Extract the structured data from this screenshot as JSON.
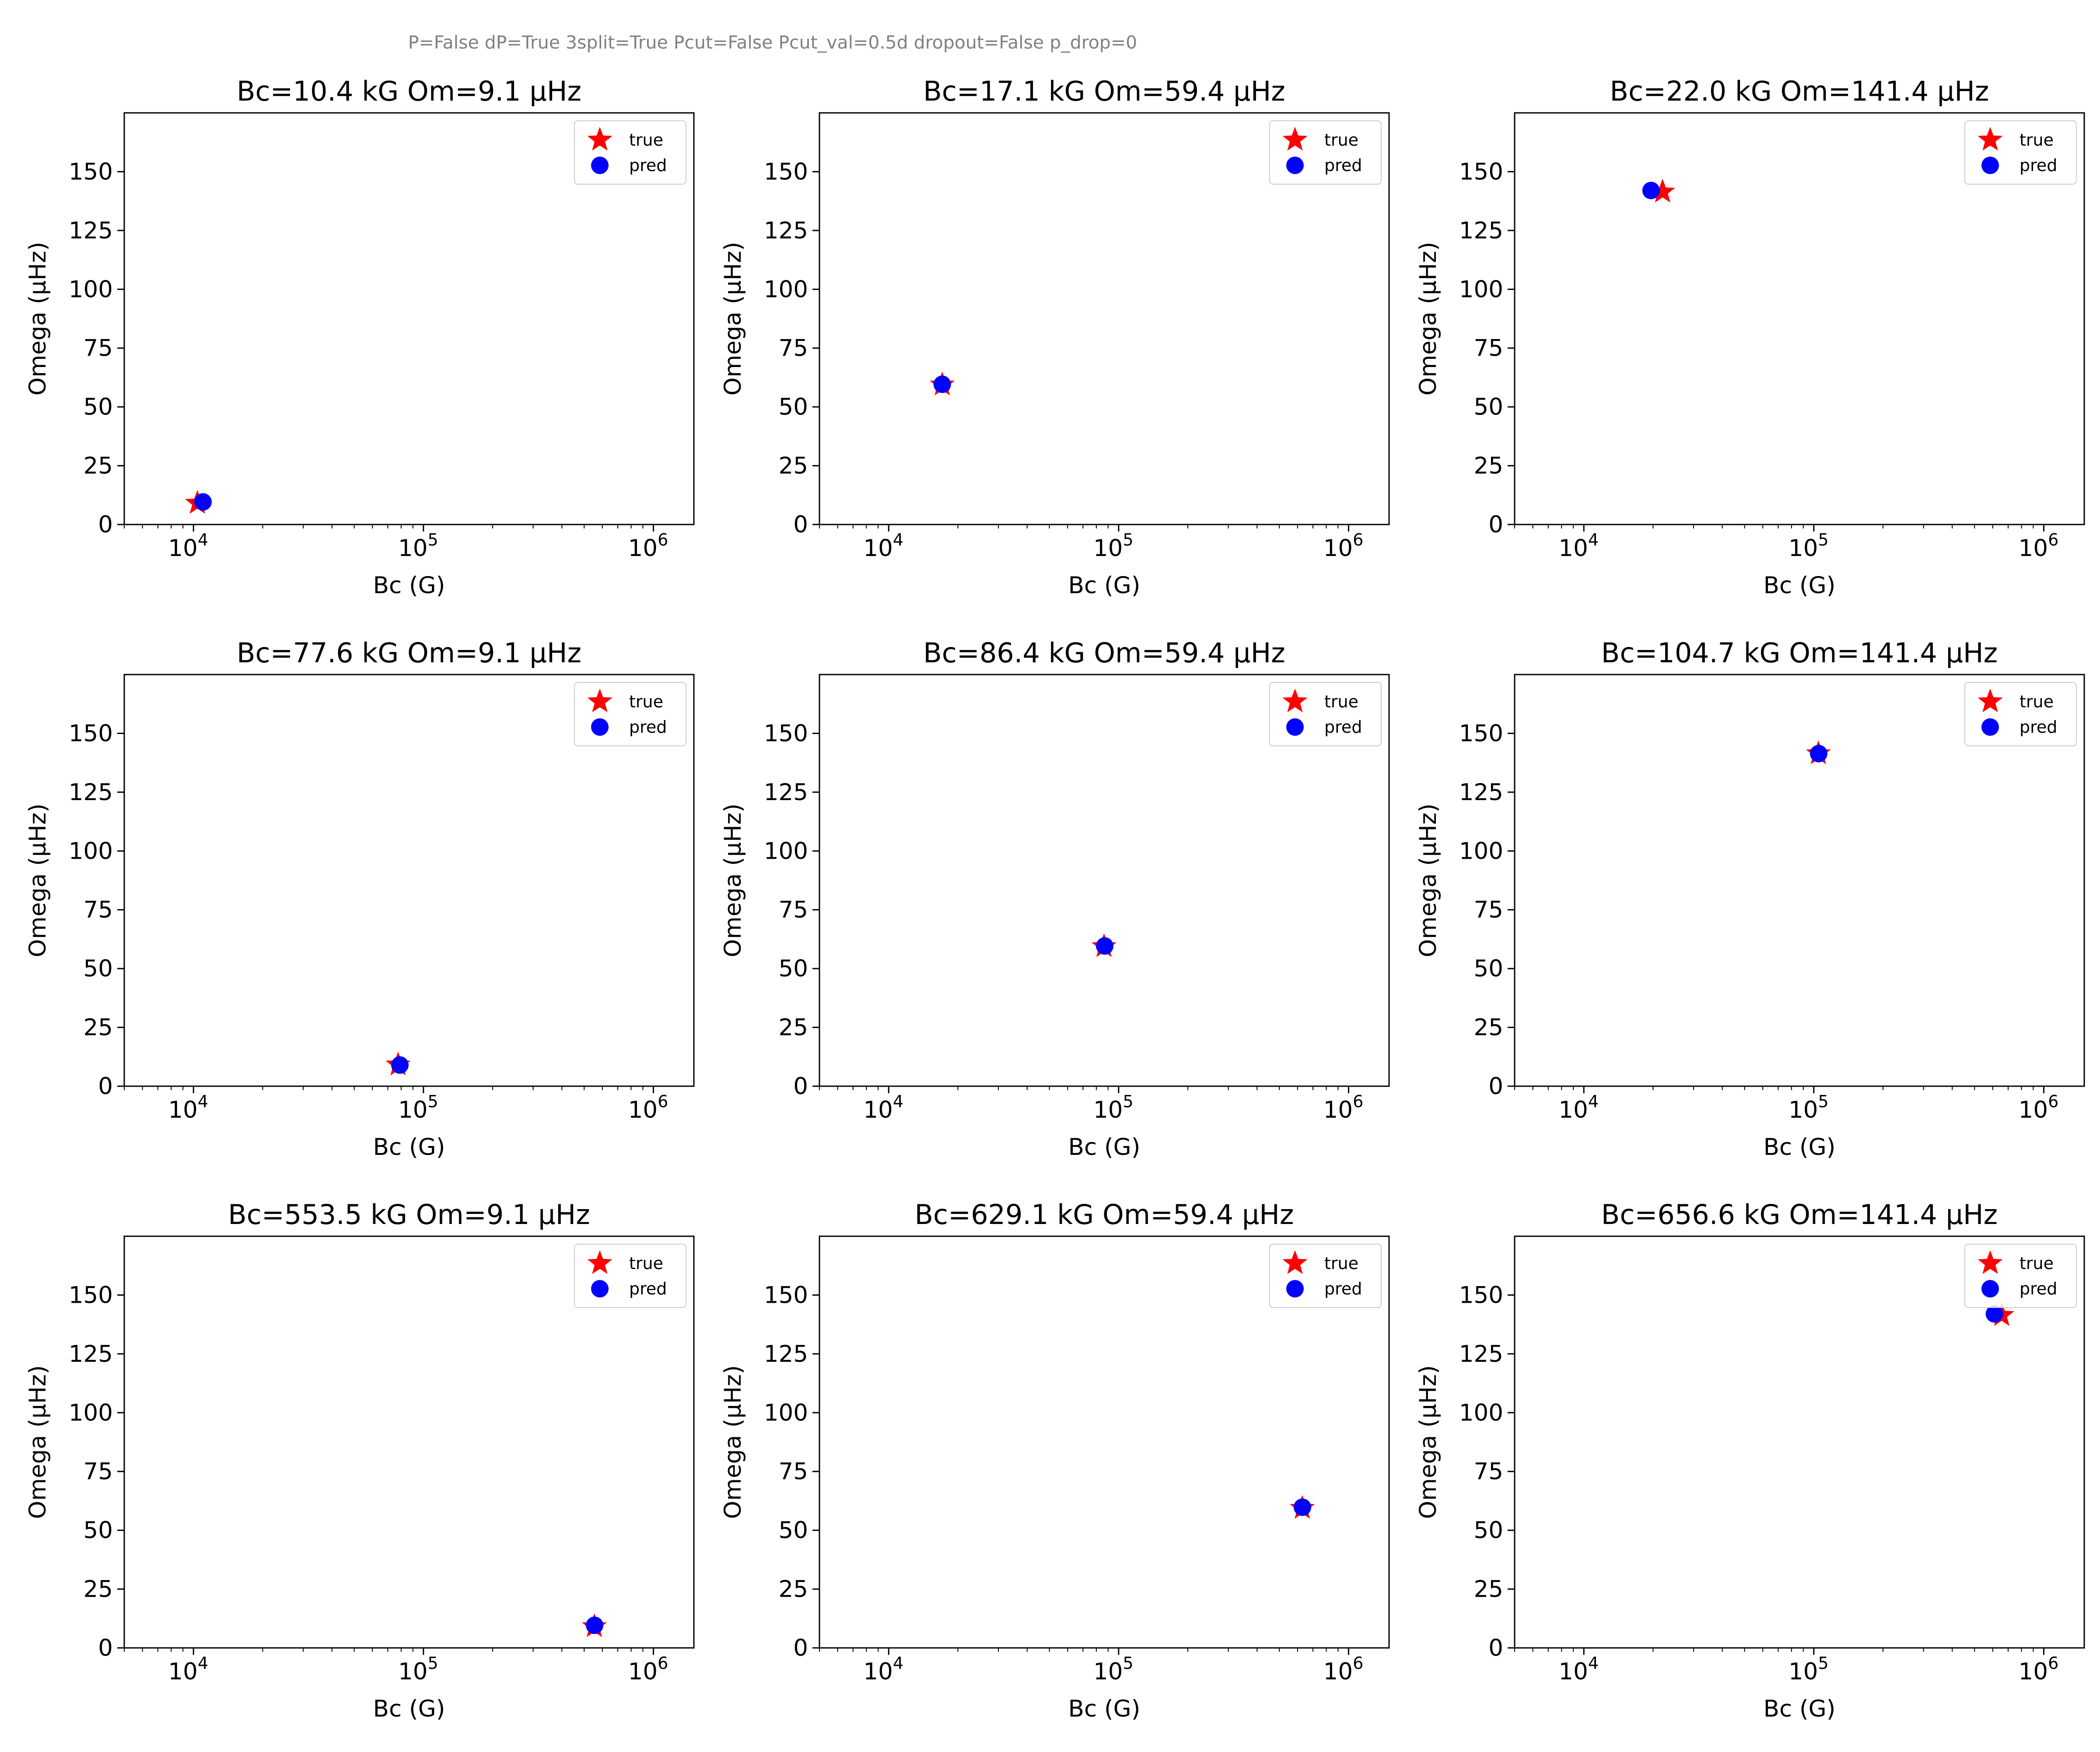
{
  "figure": {
    "suptitle": "P=False dP=True 3split=True Pcut=False Pcut_val=0.5d dropout=False p_drop=0"
  },
  "chart_data": [
    {
      "type": "scatter",
      "title": "Bc=10.4 kG  Om=9.1 μHz",
      "xlabel": "Bc (G)",
      "ylabel": "Omega (μHz)",
      "xscale": "log",
      "xlim": [
        5000,
        1500000
      ],
      "ylim": [
        0,
        175
      ],
      "xticks": [
        "10",
        "10",
        "10"
      ],
      "xticks_exp": [
        "4",
        "5",
        "6"
      ],
      "yticks": [
        "0",
        "25",
        "50",
        "75",
        "100",
        "125",
        "150"
      ],
      "legend": {
        "position": "top-right",
        "entries": [
          "true",
          "pred"
        ]
      },
      "series": [
        {
          "name": "true",
          "marker": "star",
          "color": "#ff0000",
          "x": [
            10400
          ],
          "y": [
            9.1
          ]
        },
        {
          "name": "pred",
          "marker": "circle",
          "color": "#0000ff",
          "x": [
            11000
          ],
          "y": [
            9.6
          ]
        }
      ]
    },
    {
      "type": "scatter",
      "title": "Bc=17.1 kG  Om=59.4 μHz",
      "xlabel": "Bc (G)",
      "ylabel": "Omega (μHz)",
      "xscale": "log",
      "xlim": [
        5000,
        1500000
      ],
      "ylim": [
        0,
        175
      ],
      "xticks": [
        "10",
        "10",
        "10"
      ],
      "xticks_exp": [
        "4",
        "5",
        "6"
      ],
      "yticks": [
        "0",
        "25",
        "50",
        "75",
        "100",
        "125",
        "150"
      ],
      "legend": {
        "position": "top-right",
        "entries": [
          "true",
          "pred"
        ]
      },
      "series": [
        {
          "name": "true",
          "marker": "star",
          "color": "#ff0000",
          "x": [
            17100
          ],
          "y": [
            59.4
          ]
        },
        {
          "name": "pred",
          "marker": "circle",
          "color": "#0000ff",
          "x": [
            17100
          ],
          "y": [
            59.6
          ]
        }
      ]
    },
    {
      "type": "scatter",
      "title": "Bc=22.0 kG  Om=141.4 μHz",
      "xlabel": "Bc (G)",
      "ylabel": "Omega (μHz)",
      "xscale": "log",
      "xlim": [
        5000,
        1500000
      ],
      "ylim": [
        0,
        175
      ],
      "xticks": [
        "10",
        "10",
        "10"
      ],
      "xticks_exp": [
        "4",
        "5",
        "6"
      ],
      "yticks": [
        "0",
        "25",
        "50",
        "75",
        "100",
        "125",
        "150"
      ],
      "legend": {
        "position": "top-right",
        "entries": [
          "true",
          "pred"
        ]
      },
      "series": [
        {
          "name": "true",
          "marker": "star",
          "color": "#ff0000",
          "x": [
            22000
          ],
          "y": [
            141.4
          ]
        },
        {
          "name": "pred",
          "marker": "circle",
          "color": "#0000ff",
          "x": [
            19600
          ],
          "y": [
            142.0
          ]
        }
      ]
    },
    {
      "type": "scatter",
      "title": "Bc=77.6 kG  Om=9.1 μHz",
      "xlabel": "Bc (G)",
      "ylabel": "Omega (μHz)",
      "xscale": "log",
      "xlim": [
        5000,
        1500000
      ],
      "ylim": [
        0,
        175
      ],
      "xticks": [
        "10",
        "10",
        "10"
      ],
      "xticks_exp": [
        "4",
        "5",
        "6"
      ],
      "yticks": [
        "0",
        "25",
        "50",
        "75",
        "100",
        "125",
        "150"
      ],
      "legend": {
        "position": "top-right",
        "entries": [
          "true",
          "pred"
        ]
      },
      "series": [
        {
          "name": "true",
          "marker": "star",
          "color": "#ff0000",
          "x": [
            77600
          ],
          "y": [
            9.1
          ]
        },
        {
          "name": "pred",
          "marker": "circle",
          "color": "#0000ff",
          "x": [
            79000
          ],
          "y": [
            9.0
          ]
        }
      ]
    },
    {
      "type": "scatter",
      "title": "Bc=86.4 kG  Om=59.4 μHz",
      "xlabel": "Bc (G)",
      "ylabel": "Omega (μHz)",
      "xscale": "log",
      "xlim": [
        5000,
        1500000
      ],
      "ylim": [
        0,
        175
      ],
      "xticks": [
        "10",
        "10",
        "10"
      ],
      "xticks_exp": [
        "4",
        "5",
        "6"
      ],
      "yticks": [
        "0",
        "25",
        "50",
        "75",
        "100",
        "125",
        "150"
      ],
      "legend": {
        "position": "top-right",
        "entries": [
          "true",
          "pred"
        ]
      },
      "series": [
        {
          "name": "true",
          "marker": "star",
          "color": "#ff0000",
          "x": [
            86400
          ],
          "y": [
            59.4
          ]
        },
        {
          "name": "pred",
          "marker": "circle",
          "color": "#0000ff",
          "x": [
            87000
          ],
          "y": [
            59.6
          ]
        }
      ]
    },
    {
      "type": "scatter",
      "title": "Bc=104.7 kG  Om=141.4 μHz",
      "xlabel": "Bc (G)",
      "ylabel": "Omega (μHz)",
      "xscale": "log",
      "xlim": [
        5000,
        1500000
      ],
      "ylim": [
        0,
        175
      ],
      "xticks": [
        "10",
        "10",
        "10"
      ],
      "xticks_exp": [
        "4",
        "5",
        "6"
      ],
      "yticks": [
        "0",
        "25",
        "50",
        "75",
        "100",
        "125",
        "150"
      ],
      "legend": {
        "position": "top-right",
        "entries": [
          "true",
          "pred"
        ]
      },
      "series": [
        {
          "name": "true",
          "marker": "star",
          "color": "#ff0000",
          "x": [
            104700
          ],
          "y": [
            141.4
          ]
        },
        {
          "name": "pred",
          "marker": "circle",
          "color": "#0000ff",
          "x": [
            105000
          ],
          "y": [
            141.4
          ]
        }
      ]
    },
    {
      "type": "scatter",
      "title": "Bc=553.5 kG  Om=9.1 μHz",
      "xlabel": "Bc (G)",
      "ylabel": "Omega (μHz)",
      "xscale": "log",
      "xlim": [
        5000,
        1500000
      ],
      "ylim": [
        0,
        175
      ],
      "xticks": [
        "10",
        "10",
        "10"
      ],
      "xticks_exp": [
        "4",
        "5",
        "6"
      ],
      "yticks": [
        "0",
        "25",
        "50",
        "75",
        "100",
        "125",
        "150"
      ],
      "legend": {
        "position": "top-right",
        "entries": [
          "true",
          "pred"
        ]
      },
      "series": [
        {
          "name": "true",
          "marker": "star",
          "color": "#ff0000",
          "x": [
            553500
          ],
          "y": [
            9.1
          ]
        },
        {
          "name": "pred",
          "marker": "circle",
          "color": "#0000ff",
          "x": [
            555000
          ],
          "y": [
            9.6
          ]
        }
      ]
    },
    {
      "type": "scatter",
      "title": "Bc=629.1 kG  Om=59.4 μHz",
      "xlabel": "Bc (G)",
      "ylabel": "Omega (μHz)",
      "xscale": "log",
      "xlim": [
        5000,
        1500000
      ],
      "ylim": [
        0,
        175
      ],
      "xticks": [
        "10",
        "10",
        "10"
      ],
      "xticks_exp": [
        "4",
        "5",
        "6"
      ],
      "yticks": [
        "0",
        "25",
        "50",
        "75",
        "100",
        "125",
        "150"
      ],
      "legend": {
        "position": "top-right",
        "entries": [
          "true",
          "pred"
        ]
      },
      "series": [
        {
          "name": "true",
          "marker": "star",
          "color": "#ff0000",
          "x": [
            629100
          ],
          "y": [
            59.4
          ]
        },
        {
          "name": "pred",
          "marker": "circle",
          "color": "#0000ff",
          "x": [
            630000
          ],
          "y": [
            59.8
          ]
        }
      ]
    },
    {
      "type": "scatter",
      "title": "Bc=656.6 kG  Om=141.4 μHz",
      "xlabel": "Bc (G)",
      "ylabel": "Omega (μHz)",
      "xscale": "log",
      "xlim": [
        5000,
        1500000
      ],
      "ylim": [
        0,
        175
      ],
      "xticks": [
        "10",
        "10",
        "10"
      ],
      "xticks_exp": [
        "4",
        "5",
        "6"
      ],
      "yticks": [
        "0",
        "25",
        "50",
        "75",
        "100",
        "125",
        "150"
      ],
      "legend": {
        "position": "top-right",
        "entries": [
          "true",
          "pred"
        ]
      },
      "series": [
        {
          "name": "true",
          "marker": "star",
          "color": "#ff0000",
          "x": [
            656600
          ],
          "y": [
            141.4
          ]
        },
        {
          "name": "pred",
          "marker": "circle",
          "color": "#0000ff",
          "x": [
            610000
          ],
          "y": [
            142.0
          ]
        }
      ]
    }
  ]
}
